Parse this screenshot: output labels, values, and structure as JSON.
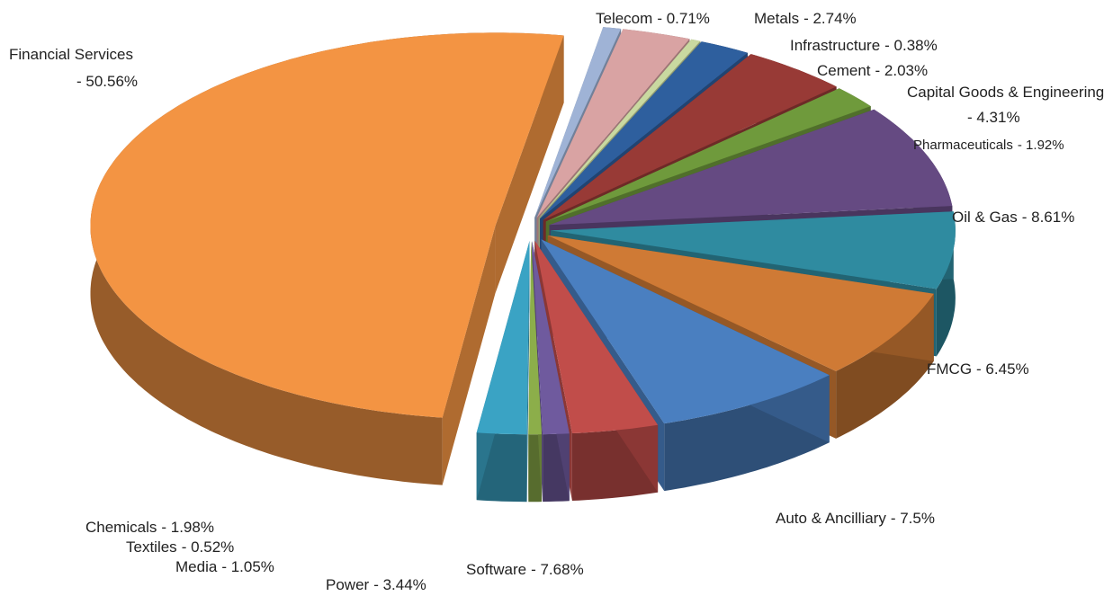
{
  "chart_data": {
    "type": "pie",
    "categories": [
      "Telecom",
      "Metals",
      "Infrastructure",
      "Cement",
      "Capital Goods & Engineering",
      "Pharmaceuticals",
      "Oil & Gas",
      "FMCG",
      "Auto & Ancilliary",
      "Software",
      "Power",
      "Media",
      "Textiles",
      "Chemicals",
      "Financial Services"
    ],
    "values": [
      0.71,
      2.74,
      0.38,
      2.03,
      4.31,
      1.92,
      8.61,
      6.45,
      7.5,
      7.68,
      3.44,
      1.05,
      0.52,
      1.98,
      50.56
    ],
    "value_labels": [
      "- 0.71%",
      "- 2.74%",
      "- 0.38%",
      "- 2.03%",
      "- 4.31%",
      "- 1.92%",
      "- 8.61%",
      "- 6.45%",
      "- 7.5%",
      "- 7.68%",
      "- 3.44%",
      "- 1.05%",
      "- 0.52%",
      "- 1.98%",
      "- 50.56%"
    ],
    "colors": [
      "#9fb3d6",
      "#d9a3a3",
      "#c9d9a0",
      "#2e5f9e",
      "#983a36",
      "#6f9a3c",
      "#654a82",
      "#2f8ba0",
      "#cf7a35",
      "#4a7fc0",
      "#c14d4a",
      "#6f5a9e",
      "#8cae4a",
      "#3aa3c4",
      "#f39443"
    ]
  }
}
